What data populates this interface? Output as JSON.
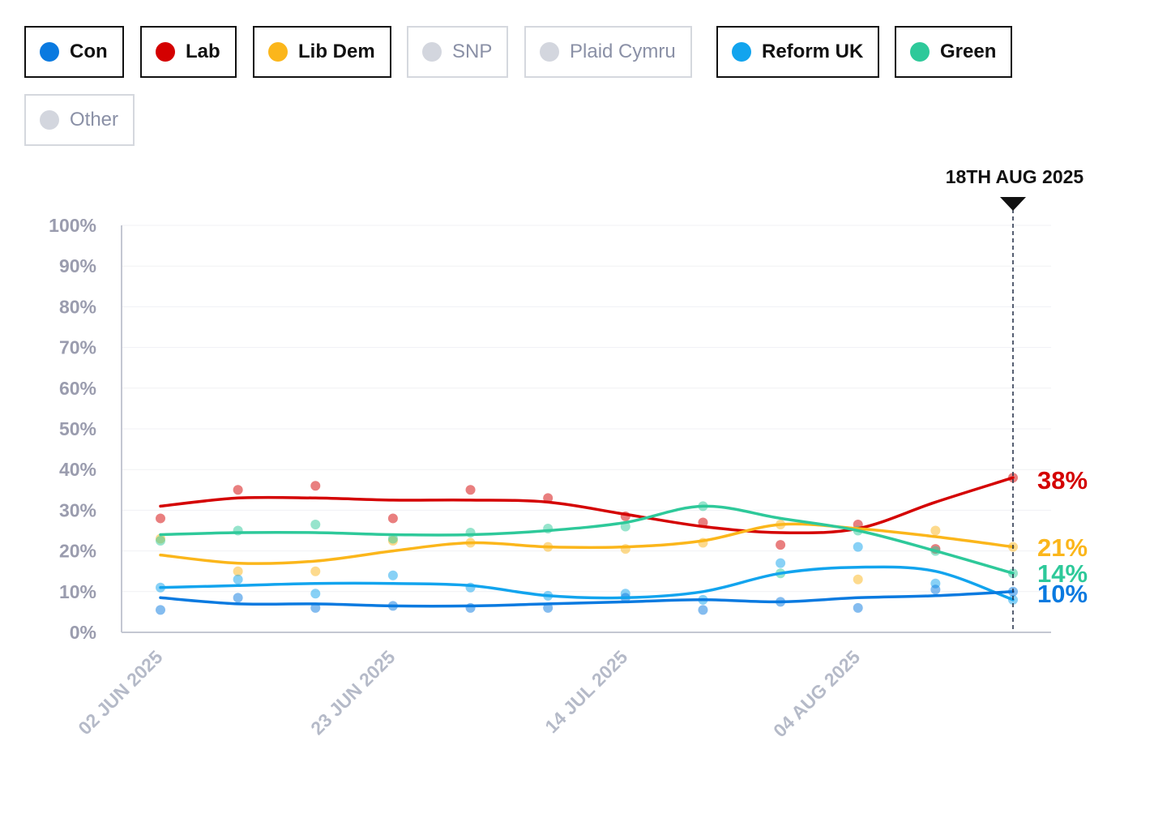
{
  "legend": [
    {
      "label": "Con",
      "color": "#0a7ae0",
      "active": true
    },
    {
      "label": "Lab",
      "color": "#d40000",
      "active": true
    },
    {
      "label": "Lib Dem",
      "color": "#fbb61b",
      "active": true
    },
    {
      "label": "SNP",
      "color": "#d3d6de",
      "active": false
    },
    {
      "label": "Plaid Cymru",
      "color": "#d3d6de",
      "active": false
    },
    {
      "label": "Reform UK",
      "color": "#12a4ee",
      "active": true
    },
    {
      "label": "Green",
      "color": "#2ec99a",
      "active": true
    },
    {
      "label": "Other",
      "color": "#d3d6de",
      "active": false
    }
  ],
  "chart_data": {
    "type": "line",
    "x": [
      "2025-06-02",
      "2025-06-09",
      "2025-06-16",
      "2025-06-23",
      "2025-06-30",
      "2025-07-07",
      "2025-07-14",
      "2025-07-21",
      "2025-07-28",
      "2025-08-04",
      "2025-08-11",
      "2025-08-18"
    ],
    "x_ticks": [
      "02 JUN 2025",
      "23 JUN 2025",
      "14 JUL 2025",
      "04 AUG 2025"
    ],
    "y_ticks": [
      "0%",
      "10%",
      "20%",
      "30%",
      "40%",
      "50%",
      "60%",
      "70%",
      "80%",
      "90%",
      "100%"
    ],
    "ylim": [
      0,
      100
    ],
    "marker": {
      "date": "2025-08-18",
      "label": "18TH AUG 2025"
    },
    "series": [
      {
        "name": "Lab",
        "color": "#d40000",
        "values": [
          31,
          33,
          33,
          32.5,
          32.5,
          32,
          29,
          26,
          24.5,
          25.5,
          32,
          38
        ],
        "points": [
          28,
          35,
          36,
          28,
          35,
          33,
          28.5,
          27,
          21.5,
          26.5,
          20.5,
          38
        ],
        "end_label": "38%"
      },
      {
        "name": "Lib Dem",
        "color": "#fbb61b",
        "values": [
          19,
          17,
          17.5,
          20,
          22,
          21,
          21,
          22.5,
          26.5,
          25.5,
          23.5,
          21
        ],
        "points": [
          23,
          15,
          15,
          22.5,
          22,
          21,
          20.5,
          22,
          26.5,
          13,
          25,
          21
        ],
        "end_label": "21%"
      },
      {
        "name": "Green",
        "color": "#2ec99a",
        "values": [
          24,
          24.5,
          24.5,
          24,
          24,
          25,
          27,
          31,
          28,
          25,
          20,
          14.5
        ],
        "points": [
          22.5,
          25,
          26.5,
          23,
          24.5,
          25.5,
          26,
          31,
          14.5,
          25,
          20,
          14.5
        ],
        "end_label": "14%"
      },
      {
        "name": "Reform UK",
        "color": "#12a4ee",
        "values": [
          11,
          11.5,
          12,
          12,
          11.5,
          9,
          8.5,
          10,
          14.5,
          16,
          15,
          8
        ],
        "points": [
          11,
          13,
          9.5,
          14,
          11,
          9,
          9.5,
          8,
          17,
          21,
          12,
          8
        ],
        "end_label": ""
      },
      {
        "name": "Con",
        "color": "#0a7ae0",
        "values": [
          8.5,
          7,
          7,
          6.5,
          6.5,
          7,
          7.5,
          8,
          7.5,
          8.5,
          9,
          10
        ],
        "points": [
          5.5,
          8.5,
          6,
          6.5,
          6,
          6,
          8.5,
          5.5,
          7.5,
          6,
          10.5,
          10
        ],
        "end_label": "10%"
      }
    ]
  }
}
